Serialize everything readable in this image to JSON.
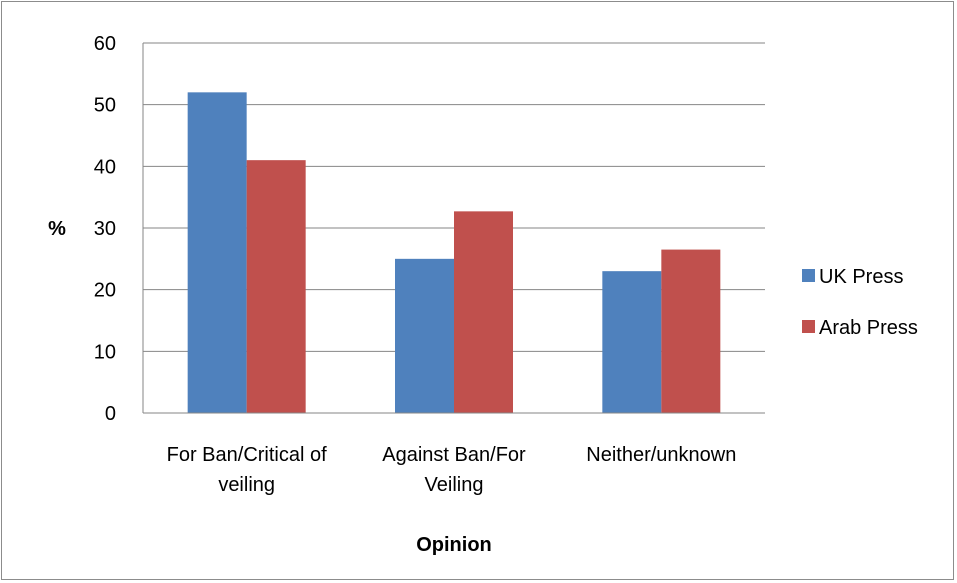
{
  "chart_data": {
    "type": "bar",
    "categories": [
      [
        "For Ban/Critical of",
        "veiling"
      ],
      [
        "Against Ban/For",
        "Veiling"
      ],
      [
        "Neither/unknown"
      ]
    ],
    "series": [
      {
        "name": "UK Press",
        "color": "#4f81bd",
        "values": [
          52,
          25,
          23
        ]
      },
      {
        "name": "Arab Press",
        "color": "#c0504d",
        "values": [
          41,
          32.7,
          26.5
        ]
      }
    ],
    "xlabel": "Opinion",
    "ylabel": "%",
    "ylim": [
      0,
      60
    ],
    "yticks": [
      0,
      10,
      20,
      30,
      40,
      50,
      60
    ],
    "grid": true,
    "legend_position": "right"
  }
}
